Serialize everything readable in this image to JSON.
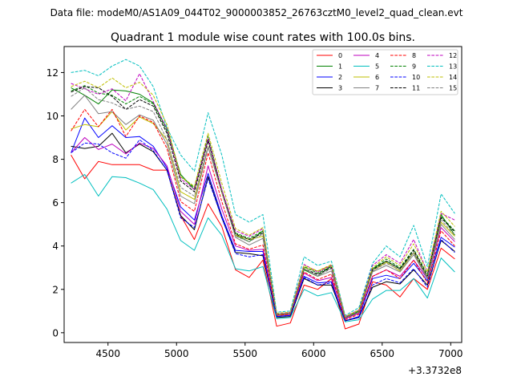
{
  "figure": {
    "suptitle": "Data file: modeM0/AS1A09_044T02_9000003852_26763cztM0_level2_quad_clean.evt"
  },
  "chart_data": {
    "type": "line",
    "title": "Quadrant 1 module wise count rates with 100.0s bins.",
    "xlabel": "",
    "ylabel": "",
    "x_offset_label": "+3.3732e8",
    "xlim": [
      4180,
      7080
    ],
    "ylim": [
      -0.45,
      13.2
    ],
    "xticks": [
      4500,
      5000,
      5500,
      6000,
      6500,
      7000
    ],
    "yticks": [
      0,
      2,
      4,
      6,
      8,
      10,
      12
    ],
    "grid": false,
    "legend": {
      "placement": "top-right",
      "columns": 4
    },
    "x": [
      4230,
      4330,
      4430,
      4530,
      4630,
      4730,
      4830,
      4930,
      5030,
      5130,
      5230,
      5330,
      5430,
      5530,
      5630,
      5730,
      5830,
      5930,
      6030,
      6130,
      6230,
      6330,
      6430,
      6530,
      6630,
      6730,
      6830,
      6930,
      7030
    ],
    "series": [
      {
        "name": "0",
        "color": "#ff0000",
        "dash": "solid",
        "values": [
          8.2,
          7.1,
          7.9,
          7.75,
          7.75,
          7.75,
          7.5,
          7.5,
          5.4,
          4.3,
          5.95,
          4.9,
          2.9,
          2.55,
          3.35,
          0.3,
          0.45,
          2.2,
          2.0,
          2.5,
          0.18,
          0.4,
          2.35,
          2.2,
          1.65,
          2.5,
          2.0,
          3.9,
          3.4
        ]
      },
      {
        "name": "1",
        "color": "#008000",
        "dash": "solid",
        "values": [
          11.3,
          10.95,
          10.55,
          11.2,
          11.15,
          11.0,
          10.6,
          9.4,
          7.3,
          6.6,
          8.9,
          6.5,
          4.5,
          4.2,
          4.7,
          0.8,
          0.85,
          2.9,
          2.6,
          3.1,
          0.65,
          0.95,
          2.95,
          3.3,
          2.95,
          3.7,
          2.5,
          5.45,
          4.5
        ]
      },
      {
        "name": "2",
        "color": "#0000ff",
        "dash": "solid",
        "values": [
          8.3,
          9.9,
          9.0,
          9.55,
          9.0,
          9.05,
          8.6,
          7.6,
          5.8,
          5.2,
          7.35,
          5.4,
          3.8,
          3.75,
          3.75,
          0.75,
          0.8,
          2.6,
          2.3,
          2.35,
          0.55,
          0.75,
          2.5,
          2.65,
          2.5,
          3.2,
          2.4,
          4.4,
          3.95
        ]
      },
      {
        "name": "3",
        "color": "#000000",
        "dash": "solid",
        "values": [
          8.6,
          8.5,
          8.6,
          9.2,
          8.3,
          8.7,
          8.35,
          7.5,
          5.4,
          4.75,
          7.2,
          5.3,
          3.7,
          3.65,
          3.55,
          0.7,
          0.75,
          2.5,
          2.2,
          2.2,
          0.55,
          0.7,
          2.1,
          2.35,
          2.25,
          2.9,
          2.2,
          4.25,
          3.75
        ]
      },
      {
        "name": "4",
        "color": "#bf00bf",
        "dash": "solid",
        "values": [
          8.3,
          9.0,
          8.45,
          8.7,
          8.25,
          8.75,
          8.5,
          7.7,
          5.6,
          5.0,
          7.7,
          5.7,
          4.0,
          3.8,
          3.85,
          0.8,
          0.85,
          2.75,
          2.4,
          2.55,
          0.65,
          0.9,
          2.6,
          2.9,
          2.6,
          3.35,
          2.5,
          4.85,
          4.2
        ]
      },
      {
        "name": "5",
        "color": "#00bfbf",
        "dash": "solid",
        "values": [
          6.9,
          7.3,
          6.3,
          7.2,
          7.15,
          6.9,
          6.6,
          5.7,
          4.25,
          3.8,
          5.3,
          4.5,
          2.95,
          2.85,
          3.05,
          0.65,
          0.7,
          2.0,
          1.7,
          1.85,
          0.5,
          0.6,
          1.55,
          1.95,
          1.95,
          2.5,
          1.6,
          3.45,
          2.8
        ]
      },
      {
        "name": "6",
        "color": "#bfbf00",
        "dash": "solid",
        "values": [
          9.4,
          9.6,
          9.5,
          10.2,
          9.35,
          9.95,
          9.65,
          8.9,
          6.5,
          6.15,
          8.6,
          6.45,
          4.5,
          4.3,
          4.45,
          0.8,
          0.9,
          3.0,
          2.85,
          3.1,
          0.7,
          0.95,
          2.85,
          3.25,
          2.85,
          3.7,
          2.6,
          5.1,
          4.45
        ]
      },
      {
        "name": "7",
        "color": "#808080",
        "dash": "solid",
        "values": [
          10.3,
          10.95,
          10.1,
          10.2,
          9.6,
          10.05,
          9.8,
          8.7,
          6.3,
          5.95,
          8.55,
          6.5,
          4.4,
          4.05,
          4.35,
          0.85,
          0.9,
          2.95,
          2.6,
          2.85,
          0.7,
          1.0,
          2.8,
          3.1,
          2.8,
          3.6,
          2.5,
          5.0,
          4.3
        ]
      },
      {
        "name": "8",
        "color": "#ff0000",
        "dash": "dashed",
        "values": [
          9.3,
          10.3,
          9.5,
          10.3,
          9.05,
          10.0,
          9.7,
          8.5,
          6.05,
          5.6,
          8.3,
          6.05,
          4.1,
          3.85,
          4.05,
          0.8,
          0.85,
          2.8,
          2.45,
          2.7,
          0.6,
          0.85,
          2.6,
          2.9,
          2.5,
          3.35,
          2.3,
          4.7,
          4.0
        ]
      },
      {
        "name": "9",
        "color": "#008000",
        "dash": "dashed",
        "values": [
          11.15,
          11.4,
          11.05,
          10.95,
          10.55,
          10.9,
          10.55,
          9.3,
          7.2,
          6.7,
          9.05,
          6.6,
          4.6,
          4.35,
          4.7,
          0.85,
          0.9,
          3.05,
          2.75,
          3.05,
          0.7,
          1.0,
          2.95,
          3.4,
          3.0,
          3.85,
          2.7,
          5.35,
          4.7
        ]
      },
      {
        "name": "10",
        "color": "#0000ff",
        "dash": "dashed",
        "values": [
          8.3,
          8.75,
          8.7,
          8.3,
          8.05,
          8.9,
          8.4,
          7.5,
          5.3,
          4.85,
          7.1,
          5.3,
          3.65,
          3.5,
          3.6,
          0.75,
          0.8,
          2.55,
          2.2,
          2.3,
          0.55,
          0.7,
          2.2,
          2.5,
          2.3,
          2.95,
          2.1,
          4.3,
          3.7
        ]
      },
      {
        "name": "11",
        "color": "#000000",
        "dash": "dashed",
        "values": [
          11.1,
          11.35,
          11.3,
          10.9,
          10.3,
          10.75,
          10.45,
          9.2,
          7.0,
          6.5,
          8.85,
          6.55,
          4.55,
          4.3,
          4.6,
          0.85,
          0.9,
          2.95,
          2.7,
          3.0,
          0.7,
          0.95,
          2.9,
          3.3,
          2.95,
          3.8,
          2.6,
          5.3,
          4.65
        ]
      },
      {
        "name": "12",
        "color": "#bf00bf",
        "dash": "dashed",
        "values": [
          11.5,
          11.25,
          11.0,
          11.25,
          10.7,
          11.95,
          10.65,
          9.4,
          7.1,
          6.6,
          8.95,
          6.6,
          4.7,
          4.45,
          4.8,
          0.85,
          0.95,
          3.15,
          2.8,
          3.1,
          0.75,
          1.05,
          3.1,
          3.6,
          3.2,
          4.3,
          2.8,
          5.5,
          5.2
        ]
      },
      {
        "name": "13",
        "color": "#00bfbf",
        "dash": "dashed",
        "values": [
          12.0,
          12.1,
          11.85,
          12.3,
          12.6,
          12.3,
          11.35,
          9.45,
          8.2,
          7.45,
          10.15,
          8.2,
          5.45,
          5.1,
          5.45,
          0.95,
          1.0,
          3.5,
          3.1,
          3.3,
          0.8,
          1.15,
          3.2,
          4.0,
          3.5,
          4.95,
          3.05,
          6.4,
          5.5
        ]
      },
      {
        "name": "14",
        "color": "#bfbf00",
        "dash": "dashed",
        "values": [
          11.35,
          11.6,
          11.3,
          11.75,
          11.3,
          11.55,
          10.95,
          9.6,
          7.2,
          6.75,
          9.2,
          6.9,
          4.8,
          4.5,
          4.85,
          0.9,
          0.95,
          3.1,
          2.85,
          3.15,
          0.75,
          1.05,
          3.0,
          3.5,
          3.1,
          4.1,
          2.8,
          5.6,
          4.9
        ]
      },
      {
        "name": "15",
        "color": "#808080",
        "dash": "dashed",
        "values": [
          10.9,
          11.3,
          10.75,
          10.6,
          10.3,
          10.45,
          10.2,
          8.9,
          6.7,
          6.3,
          8.6,
          6.5,
          4.45,
          4.2,
          4.55,
          0.85,
          0.9,
          2.95,
          2.65,
          2.95,
          0.7,
          0.95,
          2.85,
          3.2,
          2.9,
          3.7,
          2.55,
          5.2,
          4.5
        ]
      }
    ]
  }
}
